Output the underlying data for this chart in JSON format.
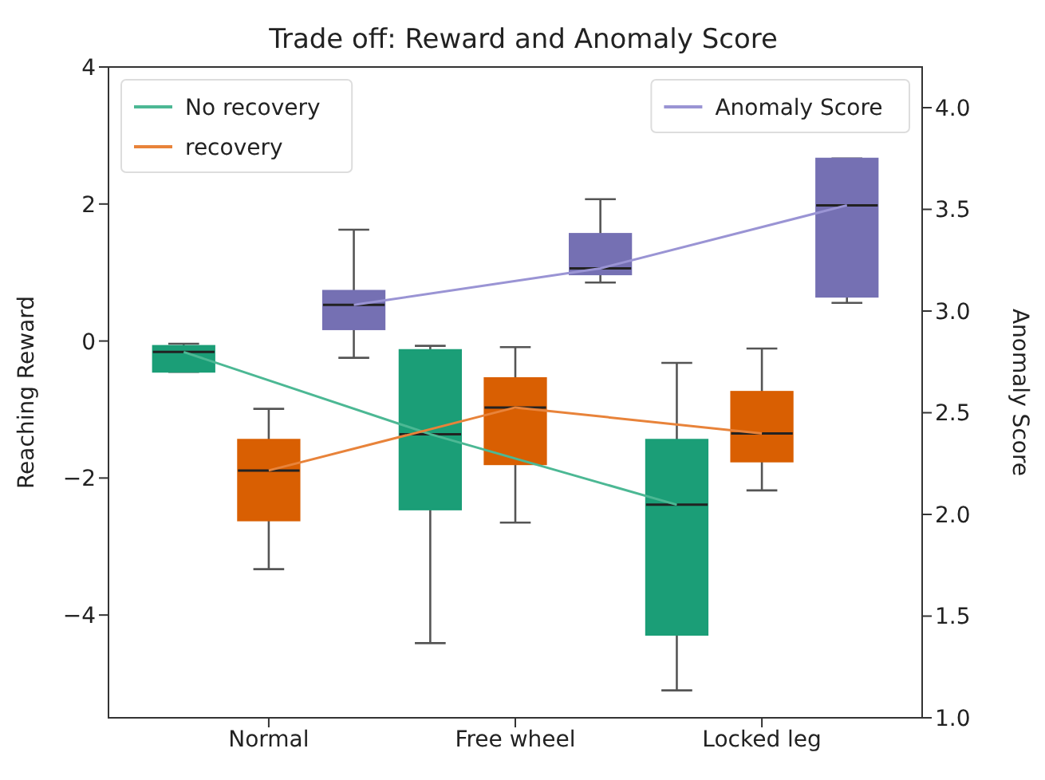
{
  "chart_data": {
    "type": "box",
    "title": "Trade off: Reward and Anomaly Score",
    "ylabel": "Reaching Reward",
    "y2label": "Anomaly Score",
    "categories": [
      "Normal",
      "Free wheel",
      "Locked leg"
    ],
    "ylim": [
      -5.5,
      4
    ],
    "yticks": [
      {
        "value": -4,
        "label": "−4"
      },
      {
        "value": -2,
        "label": "−2"
      },
      0,
      2,
      4
    ],
    "y2lim": [
      1,
      4.2
    ],
    "y2ticks": [
      {
        "value": 1,
        "label": "1.0"
      },
      {
        "value": 1.5,
        "label": "1.5"
      },
      {
        "value": 2,
        "label": "2.0"
      },
      {
        "value": 2.5,
        "label": "2.5"
      },
      {
        "value": 3,
        "label": "3.0"
      },
      {
        "value": 3.5,
        "label": "3.5"
      },
      {
        "value": 4,
        "label": "4.0"
      }
    ],
    "grid": false,
    "legend": "top",
    "line_style": "solid",
    "series": [
      {
        "color": "#1b9e77",
        "axis": "y",
        "boxes": [
          {
            "low": -0.45,
            "q1": -0.45,
            "median": -0.16,
            "q3": -0.07,
            "high": -0.04
          },
          {
            "low": -4.41,
            "q1": -2.46,
            "median": -1.36,
            "q3": -0.13,
            "high": -0.07
          },
          {
            "low": -5.1,
            "q1": -4.29,
            "median": -2.39,
            "q3": -1.44,
            "high": -0.32
          }
        ]
      },
      {
        "color": "#d95f02",
        "axis": "y",
        "boxes": [
          {
            "low": -3.33,
            "q1": -2.62,
            "median": -1.89,
            "q3": -1.44,
            "high": -0.99
          },
          {
            "low": -2.65,
            "q1": -1.8,
            "median": -0.97,
            "q3": -0.54,
            "high": -0.09
          },
          {
            "low": -2.18,
            "q1": -1.76,
            "median": -1.35,
            "q3": -0.74,
            "high": -0.11
          }
        ]
      },
      {
        "color": "#7570b3",
        "axis": "y2",
        "boxes": [
          {
            "low": 2.77,
            "q1": 2.91,
            "median": 3.03,
            "q3": 3.1,
            "high": 3.4
          },
          {
            "low": 3.14,
            "q1": 3.18,
            "median": 3.21,
            "q3": 3.38,
            "high": 3.55
          },
          {
            "low": 3.04,
            "q1": 3.07,
            "median": 3.52,
            "q3": 3.75,
            "high": 3.75
          }
        ]
      },
      {
        "type": "line",
        "name": "No recovery",
        "color": "#4cb894",
        "axis": "y",
        "values": [
          -0.16,
          -1.36,
          -2.39
        ]
      },
      {
        "type": "line",
        "name": "recovery",
        "color": "#e8833a",
        "axis": "y",
        "values": [
          -1.89,
          -0.97,
          -1.35
        ]
      },
      {
        "type": "line",
        "name": "Anomaly Score",
        "color": "#9a94d4",
        "axis": "y2",
        "values": [
          3.03,
          3.21,
          3.52
        ]
      }
    ]
  }
}
